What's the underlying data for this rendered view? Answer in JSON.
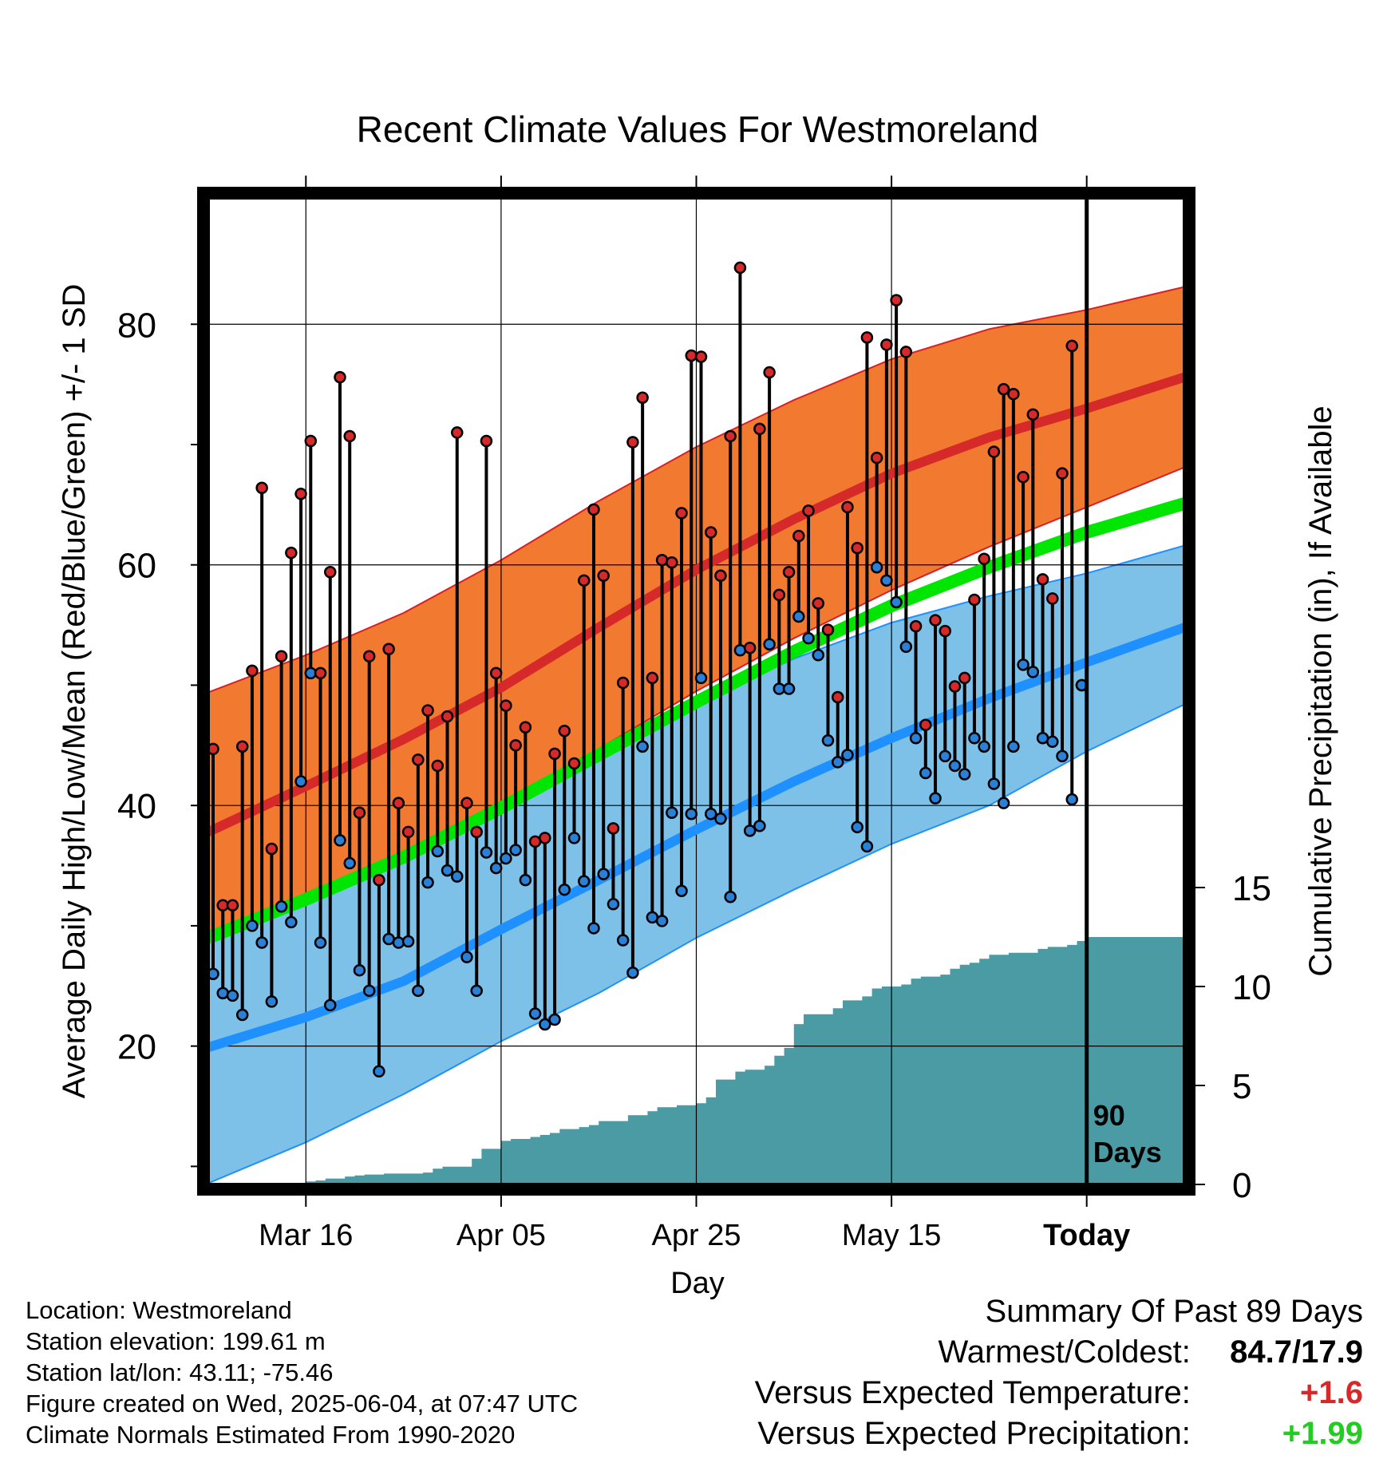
{
  "title": "Recent Climate Values For Westmoreland",
  "y_axis_label": "Average Daily High/Low/Mean (Red/Blue/Green) +/- 1 SD",
  "y2_axis_label": "Cumulative Precipitation (in), If Available",
  "x_axis_label": "Day",
  "today_marker": {
    "line1": "90",
    "line2": "Days"
  },
  "metadata": [
    "Location: Westmoreland",
    "Station elevation: 199.61 m",
    "Station lat/lon: 43.11; -75.46",
    "Figure created on Wed, 2025-06-04, at 07:47 UTC",
    "Climate Normals Estimated From 1990-2020"
  ],
  "summary": {
    "heading": "Summary Of Past 89 Days",
    "warmest_coldest_label": "Warmest/Coldest:",
    "warmest_coldest_value": "84.7/17.9",
    "temp_label": "Versus Expected Temperature:",
    "temp_value": "+1.6",
    "precip_label": "Versus Expected Precipitation:",
    "precip_value": "+1.99"
  },
  "colors": {
    "high_band": "#f27a30",
    "high_band_edge": "#d81f26",
    "high_mean": "#d62a2a",
    "low_band": "#7ec1e8",
    "low_band_edge": "#1e90ff",
    "low_mean": "#1e90ff",
    "mean_normal": "#00e600",
    "precip_fill": "#4a9ba3",
    "high_dot": "#d62a2a",
    "low_dot": "#2a7fd6"
  },
  "chart_data": {
    "type": "line",
    "x_ticks": [
      {
        "day": 10,
        "label": "Mar 16"
      },
      {
        "day": 30,
        "label": "Apr 05"
      },
      {
        "day": 50,
        "label": "Apr 25"
      },
      {
        "day": 70,
        "label": "May 15"
      },
      {
        "day": 90,
        "label": "Today"
      }
    ],
    "xlim": [
      0,
      100
    ],
    "ylim": [
      8.5,
      90.5
    ],
    "y_ticks": [
      20,
      40,
      60,
      80
    ],
    "y_minor_ticks": [
      10,
      30,
      50,
      70
    ],
    "y2_ticks": [
      0,
      5,
      10,
      15
    ],
    "y2_range_at_axis_bottom": 0,
    "normals": {
      "x": [
        0,
        10,
        20,
        30,
        40,
        50,
        60,
        70,
        80,
        90,
        100
      ],
      "high_mean": [
        37.8,
        41.6,
        45.5,
        49.8,
        54.8,
        59.6,
        63.8,
        67.6,
        70.6,
        73.0,
        75.6
      ],
      "high_upper": [
        49.4,
        52.5,
        56.0,
        60.4,
        65.3,
        69.8,
        73.7,
        77.1,
        79.6,
        81.2,
        83.1
      ],
      "high_lower": [
        28.6,
        31.8,
        35.4,
        39.7,
        44.7,
        49.5,
        53.9,
        57.9,
        61.5,
        64.8,
        68.1
      ],
      "low_mean": [
        19.9,
        22.4,
        25.4,
        29.7,
        33.8,
        38.0,
        42.0,
        45.6,
        48.9,
        51.9,
        54.8
      ],
      "low_upper": [
        30.8,
        33.0,
        36.0,
        39.8,
        44.1,
        48.5,
        52.2,
        55.2,
        57.4,
        59.3,
        61.6
      ],
      "low_lower": [
        8.6,
        12.0,
        16.0,
        20.4,
        24.4,
        29.0,
        33.0,
        36.8,
        40.0,
        44.5,
        48.4
      ],
      "mean": [
        29.0,
        32.2,
        35.7,
        39.8,
        44.2,
        48.6,
        52.8,
        56.6,
        59.8,
        62.7,
        65.1
      ]
    },
    "daily": {
      "x": [
        0,
        1,
        2,
        3,
        4,
        5,
        6,
        7,
        8,
        9,
        10,
        11,
        12,
        13,
        14,
        15,
        16,
        17,
        18,
        19,
        20,
        21,
        22,
        23,
        24,
        25,
        26,
        27,
        28,
        29,
        30,
        31,
        32,
        33,
        34,
        35,
        36,
        37,
        38,
        39,
        40,
        41,
        42,
        43,
        44,
        45,
        46,
        47,
        48,
        49,
        50,
        51,
        52,
        53,
        54,
        55,
        56,
        57,
        58,
        59,
        60,
        61,
        62,
        63,
        64,
        65,
        66,
        67,
        68,
        69,
        70,
        71,
        72,
        73,
        74,
        75,
        76,
        77,
        78,
        79,
        80,
        81,
        82,
        83,
        84,
        85,
        86,
        87,
        88,
        89
      ],
      "high": [
        44.7,
        31.7,
        31.7,
        44.9,
        51.2,
        66.4,
        36.4,
        52.4,
        61.0,
        65.9,
        70.3,
        51.0,
        59.4,
        75.6,
        70.7,
        39.4,
        52.4,
        33.8,
        53.0,
        40.2,
        37.8,
        43.8,
        47.9,
        43.3,
        47.4,
        71.0,
        40.2,
        37.8,
        70.3,
        51.0,
        48.3,
        45.0,
        46.5,
        37.0,
        37.3,
        44.3,
        46.2,
        43.5,
        58.7,
        64.6,
        59.1,
        38.1,
        50.2,
        70.2,
        73.9,
        50.6,
        60.4,
        60.2,
        64.3,
        77.4,
        77.3,
        62.7,
        59.1,
        70.7,
        84.7,
        53.1,
        71.3,
        76.0,
        57.5,
        59.4,
        62.4,
        64.5,
        56.8,
        54.6,
        49.0,
        64.8,
        61.4,
        78.9,
        68.9,
        78.3,
        82.0,
        77.7,
        54.9,
        46.7,
        55.4,
        54.5,
        49.9,
        50.6,
        57.1,
        60.5,
        69.4,
        74.6,
        74.2,
        67.3,
        72.5,
        58.8,
        57.2,
        67.6,
        78.2,
        50.0
      ],
      "low": [
        26.0,
        24.4,
        24.2,
        22.6,
        30.0,
        28.6,
        23.7,
        31.6,
        30.3,
        42.0,
        51.0,
        28.6,
        23.4,
        37.1,
        35.2,
        26.3,
        24.6,
        17.9,
        28.9,
        28.6,
        28.7,
        24.6,
        33.6,
        36.2,
        34.6,
        34.1,
        27.4,
        24.6,
        36.1,
        34.8,
        35.6,
        36.3,
        33.8,
        22.7,
        21.8,
        22.2,
        33.0,
        37.3,
        33.7,
        29.8,
        34.3,
        31.8,
        28.8,
        26.1,
        44.9,
        30.7,
        30.4,
        39.4,
        32.9,
        39.3,
        50.6,
        39.3,
        38.9,
        32.4,
        52.9,
        37.9,
        38.3,
        53.4,
        49.7,
        49.7,
        55.7,
        53.9,
        52.5,
        45.4,
        43.6,
        44.2,
        38.2,
        36.6,
        59.8,
        58.7,
        56.9,
        53.2,
        45.6,
        42.7,
        40.6,
        44.1,
        43.3,
        42.6,
        45.6,
        44.9,
        41.8,
        40.2,
        44.9,
        51.7,
        51.1,
        45.6,
        45.3,
        44.1,
        40.5,
        50.0
      ]
    },
    "precip_cumulative": {
      "x": [
        10,
        11,
        12,
        13,
        14,
        15,
        16,
        17,
        18,
        19,
        20,
        21,
        22,
        23,
        24,
        25,
        26,
        27,
        28,
        29,
        30,
        31,
        32,
        33,
        34,
        35,
        36,
        37,
        38,
        39,
        40,
        41,
        42,
        43,
        44,
        45,
        46,
        47,
        48,
        49,
        50,
        51,
        52,
        53,
        54,
        55,
        56,
        57,
        58,
        59,
        60,
        61,
        62,
        63,
        64,
        65,
        66,
        67,
        68,
        69,
        70,
        71,
        72,
        73,
        74,
        75,
        76,
        77,
        78,
        79,
        80,
        81,
        82,
        83,
        84,
        85,
        86,
        87,
        88,
        89,
        90,
        100
      ],
      "in": [
        0.15,
        0.2,
        0.3,
        0.3,
        0.4,
        0.45,
        0.5,
        0.5,
        0.55,
        0.55,
        0.55,
        0.55,
        0.6,
        0.8,
        0.9,
        0.9,
        0.9,
        1.3,
        1.8,
        1.8,
        2.2,
        2.3,
        2.3,
        2.4,
        2.5,
        2.6,
        2.8,
        2.8,
        2.9,
        3.0,
        3.2,
        3.2,
        3.2,
        3.5,
        3.5,
        3.7,
        3.9,
        3.9,
        4.0,
        4.0,
        4.1,
        4.4,
        5.3,
        5.3,
        5.7,
        5.8,
        5.8,
        6.0,
        6.5,
        6.9,
        8.1,
        8.6,
        8.6,
        8.6,
        8.9,
        9.3,
        9.3,
        9.5,
        9.9,
        10.0,
        10.0,
        10.1,
        10.4,
        10.5,
        10.5,
        10.6,
        10.9,
        11.1,
        11.2,
        11.4,
        11.6,
        11.6,
        11.7,
        11.7,
        11.7,
        11.9,
        12.0,
        12.0,
        12.1,
        12.3,
        12.5,
        12.5
      ]
    }
  }
}
